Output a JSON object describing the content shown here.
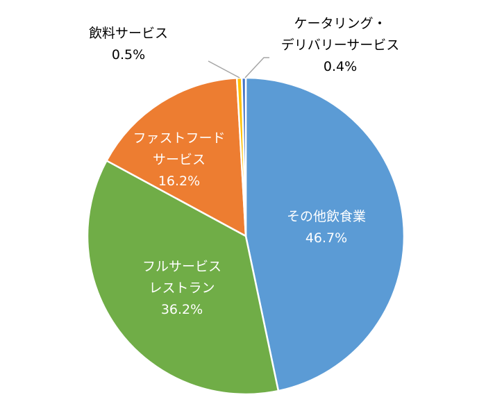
{
  "chart_data": {
    "type": "pie",
    "start": "top",
    "direction": "clockwise",
    "slices": [
      {
        "label": [
          "その他飲食業"
        ],
        "value": 46.7,
        "value_label": "46.7%",
        "color": "#5B9BD5",
        "label_color": "#FFFFFF",
        "label_position": "inside"
      },
      {
        "label": [
          "フルサービス",
          "レストラン"
        ],
        "value": 36.2,
        "value_label": "36.2%",
        "color": "#70AD47",
        "label_color": "#FFFFFF",
        "label_position": "inside"
      },
      {
        "label": [
          "ファストフード",
          "サービス"
        ],
        "value": 16.2,
        "value_label": "16.2%",
        "color": "#ED7D31",
        "label_color": "#FFFFFF",
        "label_position": "inside"
      },
      {
        "label": [
          "飲料サービス"
        ],
        "value": 0.5,
        "value_label": "0.5%",
        "color": "#FFC000",
        "label_color": "#000000",
        "label_position": "outside-left"
      },
      {
        "label": [
          "ケータリング・",
          "デリバリーサービス"
        ],
        "value": 0.4,
        "value_label": "0.4%",
        "color": "#4472C4",
        "label_color": "#000000",
        "label_position": "outside-right"
      }
    ],
    "legend": "none"
  }
}
